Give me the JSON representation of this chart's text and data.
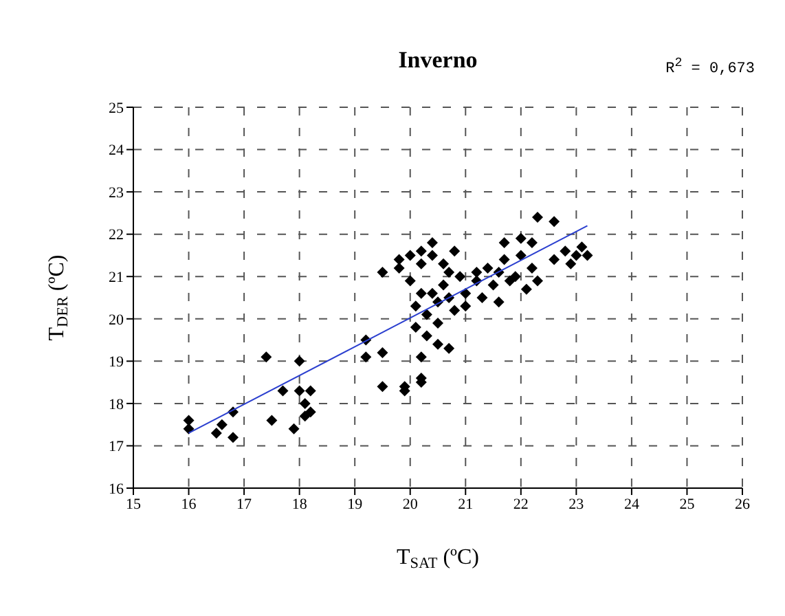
{
  "chart_data": {
    "type": "scatter",
    "title": "Inverno",
    "annotations": [
      "R$^{2}$ = 0,673"
    ],
    "xlabel": "T$_{SAT}$ (ºC)",
    "ylabel": "T$_{DER}$ (ºC)",
    "xlim": [
      15,
      26
    ],
    "xticks": [
      15,
      16,
      17,
      18,
      19,
      20,
      21,
      22,
      23,
      24,
      25,
      26
    ],
    "ylim": [
      16,
      25
    ],
    "yticks": [
      16,
      17,
      18,
      19,
      20,
      21,
      22,
      23,
      24,
      25
    ],
    "grid": true,
    "series": [
      {
        "color": "#000000",
        "marker": "diamond",
        "x": [
          16.0,
          16.0,
          16.5,
          16.6,
          16.8,
          16.8,
          17.4,
          17.5,
          17.7,
          17.9,
          18.0,
          18.0,
          18.1,
          18.2,
          18.2,
          18.1,
          19.2,
          19.2,
          19.5,
          19.5,
          19.5,
          19.8,
          19.8,
          19.9,
          19.9,
          20.0,
          20.0,
          20.1,
          20.1,
          20.2,
          20.2,
          20.2,
          20.2,
          20.2,
          20.2,
          20.3,
          20.3,
          20.4,
          20.4,
          20.4,
          20.5,
          20.5,
          20.5,
          20.6,
          20.6,
          20.7,
          20.7,
          20.7,
          20.8,
          20.8,
          20.9,
          21.0,
          21.0,
          21.2,
          21.2,
          21.3,
          21.4,
          21.5,
          21.6,
          21.6,
          21.7,
          21.7,
          21.8,
          21.9,
          22.0,
          22.0,
          22.1,
          22.2,
          22.2,
          22.3,
          22.3,
          22.6,
          22.6,
          22.8,
          22.9,
          23.0,
          23.1,
          23.2
        ],
        "values": [
          17.6,
          17.4,
          17.3,
          17.5,
          17.8,
          17.2,
          19.1,
          17.6,
          18.3,
          17.4,
          19.0,
          18.3,
          17.7,
          17.8,
          18.3,
          18.0,
          19.5,
          19.1,
          19.2,
          18.4,
          21.1,
          21.4,
          21.2,
          18.4,
          18.3,
          21.5,
          20.9,
          20.3,
          19.8,
          21.6,
          21.3,
          20.6,
          19.1,
          18.6,
          18.5,
          20.1,
          19.6,
          21.8,
          21.5,
          20.6,
          20.4,
          19.9,
          19.4,
          21.3,
          20.8,
          21.1,
          20.5,
          19.3,
          21.6,
          20.2,
          21.0,
          20.6,
          20.3,
          20.9,
          21.1,
          20.5,
          21.2,
          20.8,
          20.4,
          21.1,
          21.8,
          21.4,
          20.9,
          21.0,
          21.9,
          21.5,
          20.7,
          21.8,
          21.2,
          22.4,
          20.9,
          22.3,
          21.4,
          21.6,
          21.3,
          21.5,
          21.7,
          21.5
        ]
      },
      {
        "type": "line",
        "color": "#2b3fcf",
        "line_style": "solid",
        "x": [
          16.0,
          23.2
        ],
        "values": [
          17.3,
          22.2
        ]
      }
    ]
  }
}
